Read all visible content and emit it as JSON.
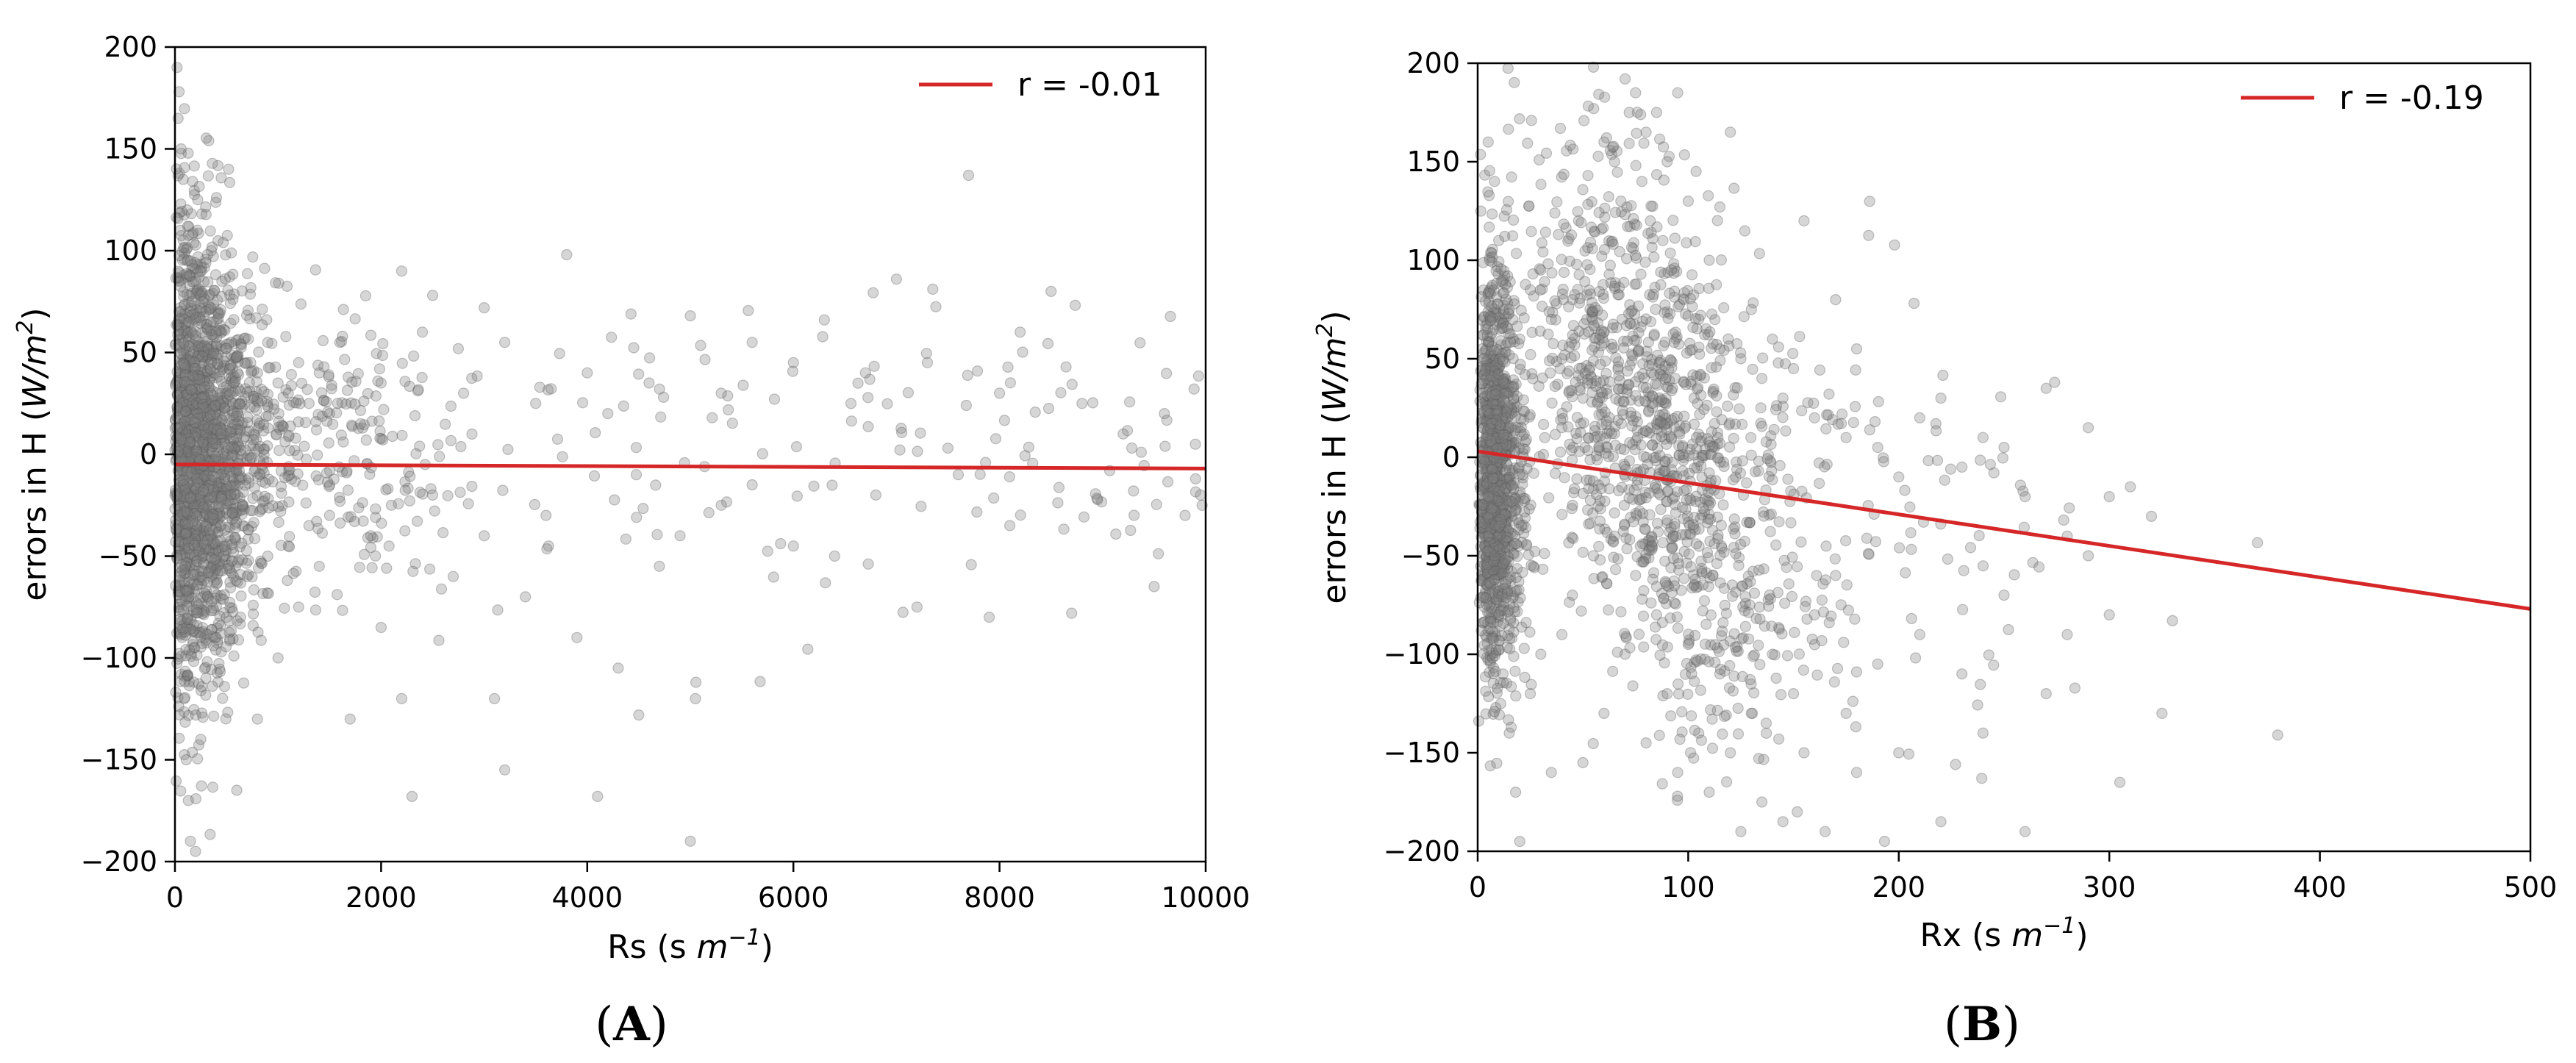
{
  "chart_data": [
    {
      "type": "scatter",
      "panel_label": "A",
      "xlabel": "Rs (s m⁻¹)",
      "xlabel_main": "Rs (s ",
      "xlabel_unit": "m",
      "xlabel_sup": "−1",
      "xlabel_close": ")",
      "ylabel": "errors in H (W/m²)",
      "ylabel_main": "errors in H (",
      "ylabel_unit": "W/m",
      "ylabel_sup": "2",
      "ylabel_close": ")",
      "xlim": [
        0,
        10000
      ],
      "ylim": [
        -200,
        200
      ],
      "xticks": [
        0,
        2000,
        4000,
        6000,
        8000,
        10000
      ],
      "xtick_labels": [
        "0",
        "2000",
        "4000",
        "6000",
        "8000",
        "10000"
      ],
      "yticks": [
        -200,
        -150,
        -100,
        -50,
        0,
        50,
        100,
        150,
        200
      ],
      "ytick_labels": [
        "−200",
        "−150",
        "−100",
        "−50",
        "0",
        "50",
        "100",
        "150",
        "200"
      ],
      "grid": false,
      "legend": {
        "placement": "top-right",
        "label": "r = -0.01",
        "color": "#d62728"
      },
      "fit_line": {
        "x": [
          0,
          10000
        ],
        "y": [
          -5,
          -7
        ],
        "color": "#d62728"
      },
      "point_color": "#808080",
      "points": [
        {
          "x": 20,
          "y": 190
        },
        {
          "x": 40,
          "y": 178
        },
        {
          "x": 30,
          "y": 165
        },
        {
          "x": 60,
          "y": 150
        },
        {
          "x": 80,
          "y": 135
        },
        {
          "x": 120,
          "y": 120
        },
        {
          "x": 50,
          "y": 110
        },
        {
          "x": 150,
          "y": 95
        },
        {
          "x": 200,
          "y": 85
        },
        {
          "x": 250,
          "y": 78
        },
        {
          "x": 300,
          "y": 70
        },
        {
          "x": 350,
          "y": 65
        },
        {
          "x": 400,
          "y": 60
        },
        {
          "x": 500,
          "y": 52
        },
        {
          "x": 520,
          "y": 140
        },
        {
          "x": 600,
          "y": 48
        },
        {
          "x": 700,
          "y": 45
        },
        {
          "x": 800,
          "y": 40
        },
        {
          "x": 900,
          "y": 55
        },
        {
          "x": 1000,
          "y": 35
        },
        {
          "x": 1100,
          "y": 30
        },
        {
          "x": 1200,
          "y": 45
        },
        {
          "x": 1300,
          "y": 25
        },
        {
          "x": 1400,
          "y": 40
        },
        {
          "x": 1500,
          "y": 20
        },
        {
          "x": 1600,
          "y": 55
        },
        {
          "x": 1800,
          "y": 15
        },
        {
          "x": 2000,
          "y": 35
        },
        {
          "x": 2200,
          "y": 90
        },
        {
          "x": 2400,
          "y": 60
        },
        {
          "x": 2500,
          "y": 78
        },
        {
          "x": 2800,
          "y": 30
        },
        {
          "x": 3000,
          "y": 72
        },
        {
          "x": 3200,
          "y": 55
        },
        {
          "x": 3500,
          "y": 25
        },
        {
          "x": 3800,
          "y": 98
        },
        {
          "x": 4000,
          "y": 40
        },
        {
          "x": 4200,
          "y": 20
        },
        {
          "x": 4600,
          "y": 35
        },
        {
          "x": 5000,
          "y": 68
        },
        {
          "x": 5300,
          "y": 30
        },
        {
          "x": 5600,
          "y": 55
        },
        {
          "x": 6000,
          "y": 45
        },
        {
          "x": 6300,
          "y": 66
        },
        {
          "x": 6700,
          "y": 40
        },
        {
          "x": 7000,
          "y": 86
        },
        {
          "x": 7300,
          "y": 45
        },
        {
          "x": 7700,
          "y": 137
        },
        {
          "x": 8000,
          "y": 30
        },
        {
          "x": 8200,
          "y": 60
        },
        {
          "x": 8500,
          "y": 80
        },
        {
          "x": 8800,
          "y": 25
        },
        {
          "x": 9200,
          "y": 10
        },
        {
          "x": 9600,
          "y": 20
        },
        {
          "x": 9900,
          "y": 5
        },
        {
          "x": 30,
          "y": -30
        },
        {
          "x": 50,
          "y": -60
        },
        {
          "x": 70,
          "y": -90
        },
        {
          "x": 90,
          "y": -120
        },
        {
          "x": 110,
          "y": -150
        },
        {
          "x": 130,
          "y": -170
        },
        {
          "x": 150,
          "y": -190
        },
        {
          "x": 200,
          "y": -195
        },
        {
          "x": 250,
          "y": -140
        },
        {
          "x": 300,
          "y": -110
        },
        {
          "x": 400,
          "y": -90
        },
        {
          "x": 500,
          "y": -80
        },
        {
          "x": 600,
          "y": -165
        },
        {
          "x": 700,
          "y": -60
        },
        {
          "x": 800,
          "y": -130
        },
        {
          "x": 900,
          "y": -50
        },
        {
          "x": 1000,
          "y": -100
        },
        {
          "x": 1100,
          "y": -45
        },
        {
          "x": 1200,
          "y": -75
        },
        {
          "x": 1300,
          "y": -35
        },
        {
          "x": 1400,
          "y": -55
        },
        {
          "x": 1500,
          "y": -30
        },
        {
          "x": 1700,
          "y": -130
        },
        {
          "x": 1900,
          "y": -40
        },
        {
          "x": 2000,
          "y": -85
        },
        {
          "x": 2100,
          "y": -25
        },
        {
          "x": 2200,
          "y": -120
        },
        {
          "x": 2300,
          "y": -168
        },
        {
          "x": 2500,
          "y": -20
        },
        {
          "x": 2700,
          "y": -60
        },
        {
          "x": 3000,
          "y": -40
        },
        {
          "x": 3100,
          "y": -120
        },
        {
          "x": 3200,
          "y": -155
        },
        {
          "x": 3400,
          "y": -70
        },
        {
          "x": 3600,
          "y": -30
        },
        {
          "x": 3900,
          "y": -90
        },
        {
          "x": 4100,
          "y": -168
        },
        {
          "x": 4300,
          "y": -105
        },
        {
          "x": 4500,
          "y": -128
        },
        {
          "x": 4700,
          "y": -55
        },
        {
          "x": 4900,
          "y": -40
        },
        {
          "x": 5000,
          "y": -190
        },
        {
          "x": 5050,
          "y": -120
        },
        {
          "x": 5300,
          "y": -25
        },
        {
          "x": 5600,
          "y": -15
        },
        {
          "x": 6000,
          "y": -45
        },
        {
          "x": 6400,
          "y": -50
        },
        {
          "x": 6800,
          "y": -20
        },
        {
          "x": 7200,
          "y": -75
        },
        {
          "x": 7600,
          "y": -10
        },
        {
          "x": 7900,
          "y": -80
        },
        {
          "x": 8100,
          "y": -35
        },
        {
          "x": 8700,
          "y": -78
        },
        {
          "x": 9300,
          "y": -18
        },
        {
          "x": 9500,
          "y": -65
        },
        {
          "x": 9800,
          "y": -30
        },
        {
          "x": 9950,
          "y": -20
        }
      ]
    },
    {
      "type": "scatter",
      "panel_label": "B",
      "xlabel": "Rx (s m⁻¹)",
      "xlabel_main": "Rx (s ",
      "xlabel_unit": "m",
      "xlabel_sup": "−1",
      "xlabel_close": ")",
      "ylabel": "errors in H (W/m²)",
      "ylabel_main": "errors in H (",
      "ylabel_unit": "W/m",
      "ylabel_sup": "2",
      "ylabel_close": ")",
      "xlim": [
        0,
        500
      ],
      "ylim": [
        -200,
        200
      ],
      "xticks": [
        0,
        100,
        200,
        300,
        400,
        500
      ],
      "xtick_labels": [
        "0",
        "100",
        "200",
        "300",
        "400",
        "500"
      ],
      "yticks": [
        -200,
        -150,
        -100,
        -50,
        0,
        50,
        100,
        150,
        200
      ],
      "ytick_labels": [
        "−200",
        "−150",
        "−100",
        "−50",
        "0",
        "50",
        "100",
        "150",
        "200"
      ],
      "grid": false,
      "legend": {
        "placement": "top-right",
        "label": "r = -0.19",
        "color": "#d62728"
      },
      "fit_line": {
        "x": [
          0,
          500
        ],
        "y": [
          3,
          -77
        ],
        "color": "#d62728"
      },
      "point_color": "#808080",
      "points": [
        {
          "x": 5,
          "y": 160
        },
        {
          "x": 8,
          "y": 140
        },
        {
          "x": 10,
          "y": 110
        },
        {
          "x": 12,
          "y": 90
        },
        {
          "x": 15,
          "y": 75
        },
        {
          "x": 20,
          "y": 60
        },
        {
          "x": 25,
          "y": 85
        },
        {
          "x": 30,
          "y": 95
        },
        {
          "x": 35,
          "y": 70
        },
        {
          "x": 40,
          "y": 50
        },
        {
          "x": 45,
          "y": 80
        },
        {
          "x": 50,
          "y": 30
        },
        {
          "x": 55,
          "y": 198
        },
        {
          "x": 60,
          "y": 160
        },
        {
          "x": 65,
          "y": 150
        },
        {
          "x": 68,
          "y": 130
        },
        {
          "x": 70,
          "y": 192
        },
        {
          "x": 72,
          "y": 175
        },
        {
          "x": 75,
          "y": 185
        },
        {
          "x": 78,
          "y": 140
        },
        {
          "x": 80,
          "y": 165
        },
        {
          "x": 82,
          "y": 120
        },
        {
          "x": 85,
          "y": 175
        },
        {
          "x": 88,
          "y": 110
        },
        {
          "x": 90,
          "y": 150
        },
        {
          "x": 92,
          "y": 95
        },
        {
          "x": 95,
          "y": 185
        },
        {
          "x": 98,
          "y": 80
        },
        {
          "x": 100,
          "y": 130
        },
        {
          "x": 105,
          "y": 70
        },
        {
          "x": 110,
          "y": 100
        },
        {
          "x": 115,
          "y": 55
        },
        {
          "x": 120,
          "y": 165
        },
        {
          "x": 125,
          "y": 50
        },
        {
          "x": 130,
          "y": 75
        },
        {
          "x": 135,
          "y": 40
        },
        {
          "x": 140,
          "y": 60
        },
        {
          "x": 145,
          "y": 30
        },
        {
          "x": 150,
          "y": 45
        },
        {
          "x": 155,
          "y": 120
        },
        {
          "x": 160,
          "y": 20
        },
        {
          "x": 170,
          "y": 80
        },
        {
          "x": 175,
          "y": 10
        },
        {
          "x": 180,
          "y": 55
        },
        {
          "x": 190,
          "y": 5
        },
        {
          "x": 200,
          "y": -10
        },
        {
          "x": 210,
          "y": 20
        },
        {
          "x": 220,
          "y": 30
        },
        {
          "x": 230,
          "y": -5
        },
        {
          "x": 240,
          "y": 10
        },
        {
          "x": 250,
          "y": 5
        },
        {
          "x": 260,
          "y": -20
        },
        {
          "x": 270,
          "y": 35
        },
        {
          "x": 280,
          "y": -40
        },
        {
          "x": 290,
          "y": 15
        },
        {
          "x": 300,
          "y": -20
        },
        {
          "x": 310,
          "y": -15
        },
        {
          "x": 320,
          "y": -30
        },
        {
          "x": 5,
          "y": -20
        },
        {
          "x": 8,
          "y": -50
        },
        {
          "x": 10,
          "y": -80
        },
        {
          "x": 12,
          "y": -110
        },
        {
          "x": 15,
          "y": -140
        },
        {
          "x": 18,
          "y": -170
        },
        {
          "x": 20,
          "y": -195
        },
        {
          "x": 25,
          "y": -120
        },
        {
          "x": 30,
          "y": -100
        },
        {
          "x": 35,
          "y": -160
        },
        {
          "x": 40,
          "y": -90
        },
        {
          "x": 45,
          "y": -70
        },
        {
          "x": 50,
          "y": -155
        },
        {
          "x": 55,
          "y": -50
        },
        {
          "x": 60,
          "y": -130
        },
        {
          "x": 65,
          "y": -40
        },
        {
          "x": 70,
          "y": -100
        },
        {
          "x": 75,
          "y": -60
        },
        {
          "x": 80,
          "y": -145
        },
        {
          "x": 85,
          "y": -80
        },
        {
          "x": 90,
          "y": -120
        },
        {
          "x": 95,
          "y": -160
        },
        {
          "x": 100,
          "y": -95
        },
        {
          "x": 105,
          "y": -140
        },
        {
          "x": 110,
          "y": -170
        },
        {
          "x": 115,
          "y": -110
        },
        {
          "x": 120,
          "y": -150
        },
        {
          "x": 125,
          "y": -190
        },
        {
          "x": 130,
          "y": -130
        },
        {
          "x": 135,
          "y": -175
        },
        {
          "x": 140,
          "y": -100
        },
        {
          "x": 145,
          "y": -185
        },
        {
          "x": 150,
          "y": -120
        },
        {
          "x": 155,
          "y": -150
        },
        {
          "x": 160,
          "y": -80
        },
        {
          "x": 165,
          "y": -190
        },
        {
          "x": 170,
          "y": -60
        },
        {
          "x": 175,
          "y": -130
        },
        {
          "x": 180,
          "y": -160
        },
        {
          "x": 190,
          "y": -105
        },
        {
          "x": 200,
          "y": -150
        },
        {
          "x": 210,
          "y": -90
        },
        {
          "x": 220,
          "y": -185
        },
        {
          "x": 230,
          "y": -110
        },
        {
          "x": 240,
          "y": -140
        },
        {
          "x": 250,
          "y": -70
        },
        {
          "x": 260,
          "y": -190
        },
        {
          "x": 270,
          "y": -120
        },
        {
          "x": 280,
          "y": -90
        },
        {
          "x": 290,
          "y": -50
        },
        {
          "x": 300,
          "y": -80
        },
        {
          "x": 305,
          "y": -165
        },
        {
          "x": 325,
          "y": -130
        },
        {
          "x": 330,
          "y": -83
        },
        {
          "x": 380,
          "y": -141
        }
      ]
    }
  ]
}
